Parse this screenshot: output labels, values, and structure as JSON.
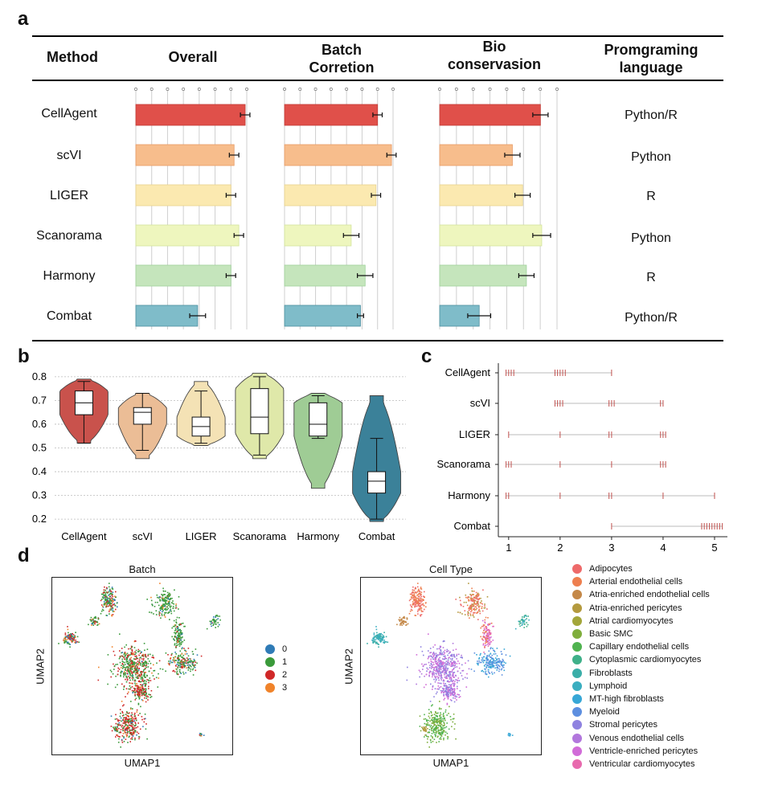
{
  "panel_a": {
    "letter": "a",
    "headers": {
      "method": "Method",
      "overall": "Overall",
      "batch_line1": "Batch",
      "batch_line2": "Corretion",
      "bio_line1": "Bio",
      "bio_line2": "conservasion",
      "lang_line1": "Promgraming",
      "lang_line2": "language"
    },
    "rows": [
      {
        "method": "CellAgent",
        "language": "Python/R"
      },
      {
        "method": "scVI",
        "language": "Python"
      },
      {
        "method": "LIGER",
        "language": "R"
      },
      {
        "method": "Scanorama",
        "language": "Python"
      },
      {
        "method": "Harmony",
        "language": "R"
      },
      {
        "method": "Combat",
        "language": "Python/R"
      }
    ],
    "colors": [
      "#e0504a",
      "#f7bd8c",
      "#fbe9b0",
      "#eef6be",
      "#c5e5bc",
      "#7fbcc9"
    ],
    "edge_colors": [
      "#c23b36",
      "#e89a63",
      "#e8d38c",
      "#d3e49c",
      "#9fd19a",
      "#4d8fa0"
    ]
  },
  "chart_data": [
    {
      "type": "bar",
      "title": "Overall",
      "categories": [
        "CellAgent",
        "scVI",
        "LIGER",
        "Scanorama",
        "Harmony",
        "Combat"
      ],
      "values": [
        0.69,
        0.62,
        0.6,
        0.65,
        0.6,
        0.39
      ],
      "errors": [
        0.03,
        0.03,
        0.03,
        0.03,
        0.03,
        0.05
      ],
      "xlim": [
        0,
        0.7
      ]
    },
    {
      "type": "bar",
      "title": "Batch Corretion",
      "categories": [
        "CellAgent",
        "scVI",
        "LIGER",
        "Scanorama",
        "Harmony",
        "Combat"
      ],
      "values": [
        0.6,
        0.69,
        0.59,
        0.43,
        0.52,
        0.49
      ],
      "errors": [
        0.03,
        0.03,
        0.03,
        0.05,
        0.05,
        0.02
      ],
      "xlim": [
        0,
        0.7
      ]
    },
    {
      "type": "bar",
      "title": "Bio conservasion",
      "categories": [
        "CellAgent",
        "scVI",
        "LIGER",
        "Scanorama",
        "Harmony",
        "Combat"
      ],
      "values": [
        0.79,
        0.57,
        0.65,
        0.8,
        0.68,
        0.31
      ],
      "errors": [
        0.06,
        0.06,
        0.06,
        0.07,
        0.06,
        0.09
      ],
      "xlim": [
        0,
        0.92
      ]
    },
    {
      "type": "violin",
      "categories": [
        "CellAgent",
        "scVI",
        "LIGER",
        "Scanorama",
        "Harmony",
        "Combat"
      ],
      "ylim": [
        0.17,
        0.83
      ],
      "yticks": [
        "0.2",
        "0.3",
        "0.4",
        "0.5",
        "0.6",
        "0.7",
        "0.8"
      ],
      "grid": true,
      "series": [
        {
          "min": 0.52,
          "q1": 0.64,
          "median": 0.69,
          "q3": 0.74,
          "max": 0.78,
          "vmin": 0.52,
          "vmax": 0.79,
          "color": "#c9524c"
        },
        {
          "min": 0.49,
          "q1": 0.6,
          "median": 0.65,
          "q3": 0.67,
          "max": 0.73,
          "vmin": 0.455,
          "vmax": 0.73,
          "color": "#ebbd96"
        },
        {
          "min": 0.52,
          "q1": 0.55,
          "median": 0.59,
          "q3": 0.63,
          "max": 0.74,
          "vmin": 0.51,
          "vmax": 0.78,
          "color": "#f4e2b5"
        },
        {
          "min": 0.47,
          "q1": 0.56,
          "median": 0.63,
          "q3": 0.75,
          "max": 0.8,
          "vmin": 0.455,
          "vmax": 0.815,
          "color": "#dfe8a9"
        },
        {
          "min": 0.54,
          "q1": 0.55,
          "median": 0.6,
          "q3": 0.69,
          "max": 0.72,
          "vmin": 0.33,
          "vmax": 0.73,
          "color": "#9fcc95"
        },
        {
          "min": 0.2,
          "q1": 0.31,
          "median": 0.36,
          "q3": 0.4,
          "max": 0.54,
          "vmin": 0.19,
          "vmax": 0.72,
          "color": "#3b8199"
        }
      ]
    },
    {
      "type": "scatter",
      "categories": [
        "CellAgent",
        "scVI",
        "LIGER",
        "Scanorama",
        "Harmony",
        "Combat"
      ],
      "xticks": [
        "1",
        "2",
        "3",
        "4",
        "5"
      ],
      "xlim": [
        0.8,
        5.25
      ],
      "ranks": [
        [
          0.95,
          1.0,
          1.05,
          1.1,
          1.9,
          1.95,
          2.0,
          2.05,
          2.1,
          3.0
        ],
        [
          1.9,
          1.95,
          2.0,
          2.05,
          2.95,
          3.0,
          3.05,
          3.95,
          4.0
        ],
        [
          1.0,
          2.0,
          2.95,
          3.0,
          3.95,
          4.0,
          4.05
        ],
        [
          0.95,
          1.0,
          1.05,
          2.0,
          3.0,
          3.95,
          4.0,
          4.05
        ],
        [
          0.95,
          1.0,
          2.0,
          2.95,
          3.0,
          4.0,
          5.0
        ],
        [
          3.0,
          4.75,
          4.8,
          4.85,
          4.9,
          4.95,
          5.0,
          5.05,
          5.1,
          5.15
        ]
      ]
    }
  ],
  "panel_b": {
    "letter": "b"
  },
  "panel_c": {
    "letter": "c"
  },
  "panel_d": {
    "letter": "d",
    "batch_title": "Batch",
    "celltype_title": "Cell Type",
    "xlabel": "UMAP1",
    "ylabel": "UMAP2",
    "batch_legend": [
      {
        "label": "0",
        "color": "#2f7bb6"
      },
      {
        "label": "1",
        "color": "#3a9a3a"
      },
      {
        "label": "2",
        "color": "#d02828"
      },
      {
        "label": "3",
        "color": "#f0832a"
      }
    ],
    "celltype_legend": [
      {
        "label": "Adipocytes",
        "color": "#ee6a6a"
      },
      {
        "label": "Arterial endothelial cells",
        "color": "#ee7f4f"
      },
      {
        "label": "Atria-enriched endothelial cells",
        "color": "#c48848"
      },
      {
        "label": "Atria-enriched pericytes",
        "color": "#b49a3e"
      },
      {
        "label": "Atrial cardiomyocytes",
        "color": "#a3a63a"
      },
      {
        "label": "Basic SMC",
        "color": "#7fae3c"
      },
      {
        "label": "Capillary endothelial cells",
        "color": "#4fb34f"
      },
      {
        "label": "Cytoplasmic cardiomyocytes",
        "color": "#3fb089"
      },
      {
        "label": "Fibroblasts",
        "color": "#3aaea8"
      },
      {
        "label": "Lymphoid",
        "color": "#3aaec0"
      },
      {
        "label": "MT-high fibroblasts",
        "color": "#37a7d6"
      },
      {
        "label": "Myeloid",
        "color": "#5d8fe0"
      },
      {
        "label": "Stromal pericytes",
        "color": "#8f82e0"
      },
      {
        "label": "Venous endothelial cells",
        "color": "#b277dd"
      },
      {
        "label": "Ventricle-enriched pericytes",
        "color": "#d16cd8"
      },
      {
        "label": "Ventricular cardiomyocytes",
        "color": "#e86aae"
      }
    ]
  }
}
